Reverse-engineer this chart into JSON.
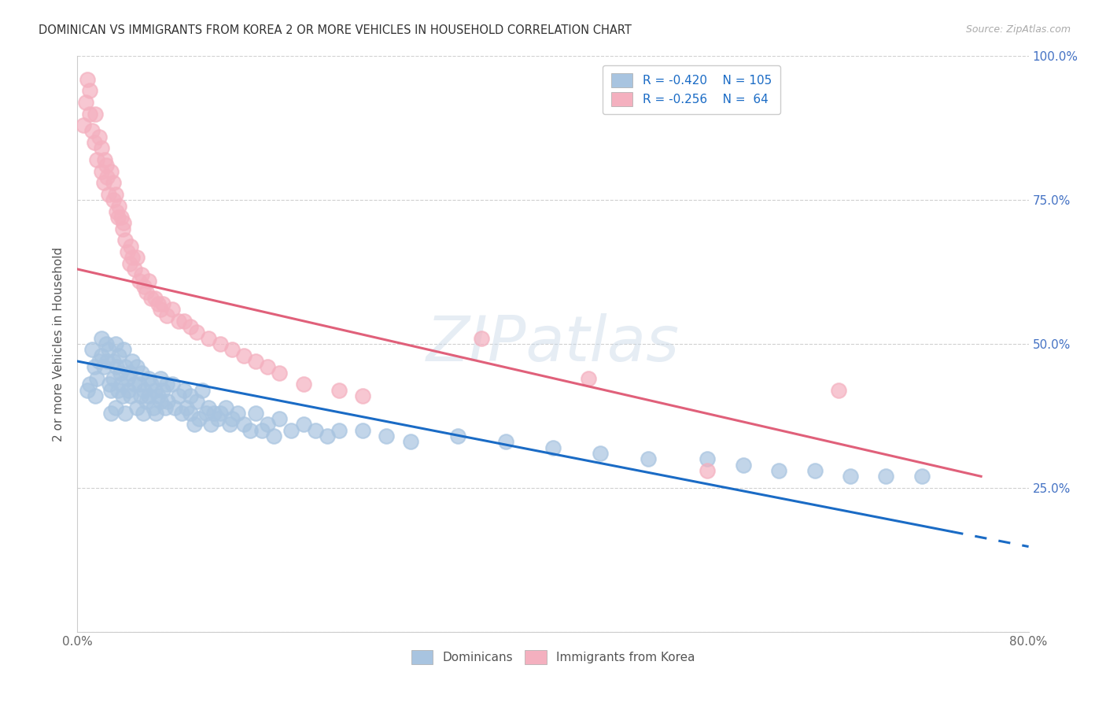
{
  "title": "DOMINICAN VS IMMIGRANTS FROM KOREA 2 OR MORE VEHICLES IN HOUSEHOLD CORRELATION CHART",
  "source": "Source: ZipAtlas.com",
  "ylabel": "2 or more Vehicles in Household",
  "dominican_R": -0.42,
  "dominican_N": 105,
  "korean_R": -0.256,
  "korean_N": 64,
  "xlim": [
    0.0,
    0.8
  ],
  "ylim": [
    0.0,
    1.0
  ],
  "dominican_color": "#a8c4e0",
  "dominican_line_color": "#1a6bc5",
  "korean_color": "#f4b0bf",
  "korean_line_color": "#e0607a",
  "background_color": "#ffffff",
  "watermark": "ZIPatlas",
  "legend_R_color": "#1a6bc5",
  "dom_line_start_y": 0.47,
  "dom_line_end_y": 0.148,
  "kor_line_start_y": 0.63,
  "kor_line_end_y": 0.27,
  "dom_line_x_start": 0.0,
  "dom_line_x_solid_end": 0.735,
  "dom_line_x_dashed_end": 0.8,
  "kor_line_x_start": 0.0,
  "kor_line_x_end": 0.76,
  "dominican_x": [
    0.008,
    0.01,
    0.012,
    0.014,
    0.015,
    0.016,
    0.018,
    0.02,
    0.02,
    0.022,
    0.024,
    0.025,
    0.026,
    0.027,
    0.028,
    0.028,
    0.03,
    0.03,
    0.032,
    0.032,
    0.033,
    0.034,
    0.035,
    0.036,
    0.037,
    0.038,
    0.039,
    0.04,
    0.04,
    0.042,
    0.043,
    0.044,
    0.045,
    0.046,
    0.048,
    0.05,
    0.05,
    0.052,
    0.053,
    0.054,
    0.055,
    0.056,
    0.058,
    0.06,
    0.06,
    0.062,
    0.064,
    0.065,
    0.066,
    0.068,
    0.07,
    0.07,
    0.072,
    0.074,
    0.075,
    0.076,
    0.08,
    0.082,
    0.085,
    0.088,
    0.09,
    0.092,
    0.095,
    0.095,
    0.098,
    0.1,
    0.102,
    0.105,
    0.108,
    0.11,
    0.112,
    0.115,
    0.118,
    0.12,
    0.125,
    0.128,
    0.13,
    0.135,
    0.14,
    0.145,
    0.15,
    0.155,
    0.16,
    0.165,
    0.17,
    0.18,
    0.19,
    0.2,
    0.21,
    0.22,
    0.24,
    0.26,
    0.28,
    0.32,
    0.36,
    0.4,
    0.44,
    0.48,
    0.53,
    0.56,
    0.59,
    0.62,
    0.65,
    0.68,
    0.71
  ],
  "dominican_y": [
    0.42,
    0.43,
    0.49,
    0.46,
    0.41,
    0.44,
    0.47,
    0.48,
    0.51,
    0.46,
    0.5,
    0.47,
    0.49,
    0.43,
    0.42,
    0.38,
    0.47,
    0.44,
    0.5,
    0.39,
    0.46,
    0.42,
    0.48,
    0.45,
    0.43,
    0.41,
    0.49,
    0.46,
    0.38,
    0.44,
    0.42,
    0.45,
    0.41,
    0.47,
    0.43,
    0.46,
    0.39,
    0.43,
    0.41,
    0.45,
    0.38,
    0.42,
    0.4,
    0.44,
    0.41,
    0.43,
    0.39,
    0.42,
    0.38,
    0.41,
    0.44,
    0.4,
    0.42,
    0.39,
    0.43,
    0.4,
    0.43,
    0.39,
    0.41,
    0.38,
    0.42,
    0.39,
    0.38,
    0.41,
    0.36,
    0.4,
    0.37,
    0.42,
    0.38,
    0.39,
    0.36,
    0.38,
    0.37,
    0.38,
    0.39,
    0.36,
    0.37,
    0.38,
    0.36,
    0.35,
    0.38,
    0.35,
    0.36,
    0.34,
    0.37,
    0.35,
    0.36,
    0.35,
    0.34,
    0.35,
    0.35,
    0.34,
    0.33,
    0.34,
    0.33,
    0.32,
    0.31,
    0.3,
    0.3,
    0.29,
    0.28,
    0.28,
    0.27,
    0.27,
    0.27
  ],
  "korean_x": [
    0.005,
    0.007,
    0.008,
    0.01,
    0.01,
    0.012,
    0.014,
    0.015,
    0.016,
    0.018,
    0.02,
    0.02,
    0.022,
    0.023,
    0.024,
    0.025,
    0.026,
    0.028,
    0.03,
    0.03,
    0.032,
    0.033,
    0.034,
    0.035,
    0.037,
    0.038,
    0.039,
    0.04,
    0.042,
    0.044,
    0.045,
    0.046,
    0.048,
    0.05,
    0.052,
    0.054,
    0.056,
    0.058,
    0.06,
    0.062,
    0.065,
    0.068,
    0.07,
    0.072,
    0.075,
    0.08,
    0.085,
    0.09,
    0.095,
    0.1,
    0.11,
    0.12,
    0.13,
    0.14,
    0.15,
    0.16,
    0.17,
    0.19,
    0.22,
    0.24,
    0.34,
    0.43,
    0.53,
    0.64
  ],
  "korean_y": [
    0.88,
    0.92,
    0.96,
    0.94,
    0.9,
    0.87,
    0.85,
    0.9,
    0.82,
    0.86,
    0.8,
    0.84,
    0.78,
    0.82,
    0.81,
    0.79,
    0.76,
    0.8,
    0.78,
    0.75,
    0.76,
    0.73,
    0.72,
    0.74,
    0.72,
    0.7,
    0.71,
    0.68,
    0.66,
    0.64,
    0.67,
    0.65,
    0.63,
    0.65,
    0.61,
    0.62,
    0.6,
    0.59,
    0.61,
    0.58,
    0.58,
    0.57,
    0.56,
    0.57,
    0.55,
    0.56,
    0.54,
    0.54,
    0.53,
    0.52,
    0.51,
    0.5,
    0.49,
    0.48,
    0.47,
    0.46,
    0.45,
    0.43,
    0.42,
    0.41,
    0.51,
    0.44,
    0.28,
    0.42
  ]
}
